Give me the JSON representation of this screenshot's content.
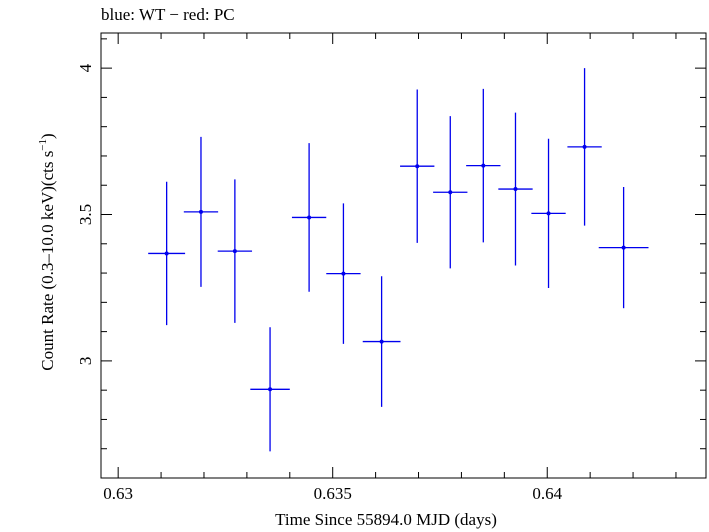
{
  "chart_data": {
    "type": "scatter",
    "title": "blue: WT − red: PC",
    "xlabel": "Time Since 55894.0 MJD (days)",
    "ylabel_main": "Count Rate (0.3–10.0 keV)(cts s",
    "ylabel_sup": "−1",
    "ylabel_close": ")",
    "xlim": [
      0.6296,
      0.6437
    ],
    "ylim": [
      2.6,
      4.12
    ],
    "x_ticks": [
      {
        "value": 0.63,
        "label": "0.63"
      },
      {
        "value": 0.635,
        "label": "0.635"
      },
      {
        "value": 0.64,
        "label": "0.64"
      }
    ],
    "y_ticks": [
      {
        "value": 3.0,
        "label": "3"
      },
      {
        "value": 3.5,
        "label": "3.5"
      },
      {
        "value": 4.0,
        "label": "4"
      }
    ],
    "grid": false,
    "colors": {
      "WT": "#0000ee",
      "PC": "#ee0000",
      "axis": "#000000"
    },
    "series": [
      {
        "name": "WT",
        "color": "#0000ee",
        "points": [
          {
            "x": 0.63113,
            "xerr": 0.00043,
            "y": 3.367,
            "yerr_lo": 0.245,
            "yerr_hi": 0.245
          },
          {
            "x": 0.63193,
            "xerr": 0.0004,
            "y": 3.509,
            "yerr_lo": 0.256,
            "yerr_hi": 0.256
          },
          {
            "x": 0.63272,
            "xerr": 0.0004,
            "y": 3.375,
            "yerr_lo": 0.245,
            "yerr_hi": 0.245
          },
          {
            "x": 0.63354,
            "xerr": 0.00046,
            "y": 2.903,
            "yerr_lo": 0.212,
            "yerr_hi": 0.212
          },
          {
            "x": 0.63445,
            "xerr": 0.0004,
            "y": 3.49,
            "yerr_lo": 0.254,
            "yerr_hi": 0.254
          },
          {
            "x": 0.63525,
            "xerr": 0.0004,
            "y": 3.298,
            "yerr_lo": 0.24,
            "yerr_hi": 0.24
          },
          {
            "x": 0.63614,
            "xerr": 0.00044,
            "y": 3.066,
            "yerr_lo": 0.223,
            "yerr_hi": 0.223
          },
          {
            "x": 0.63697,
            "xerr": 0.0004,
            "y": 3.665,
            "yerr_lo": 0.262,
            "yerr_hi": 0.262
          },
          {
            "x": 0.63774,
            "xerr": 0.0004,
            "y": 3.576,
            "yerr_lo": 0.26,
            "yerr_hi": 0.26
          },
          {
            "x": 0.63851,
            "xerr": 0.0004,
            "y": 3.667,
            "yerr_lo": 0.262,
            "yerr_hi": 0.262
          },
          {
            "x": 0.63926,
            "xerr": 0.0004,
            "y": 3.587,
            "yerr_lo": 0.261,
            "yerr_hi": 0.261
          },
          {
            "x": 0.64003,
            "xerr": 0.0004,
            "y": 3.504,
            "yerr_lo": 0.255,
            "yerr_hi": 0.255
          },
          {
            "x": 0.64087,
            "xerr": 0.0004,
            "y": 3.731,
            "yerr_lo": 0.269,
            "yerr_hi": 0.269
          },
          {
            "x": 0.64178,
            "xerr": 0.00058,
            "y": 3.387,
            "yerr_lo": 0.207,
            "yerr_hi": 0.207
          }
        ]
      }
    ]
  }
}
